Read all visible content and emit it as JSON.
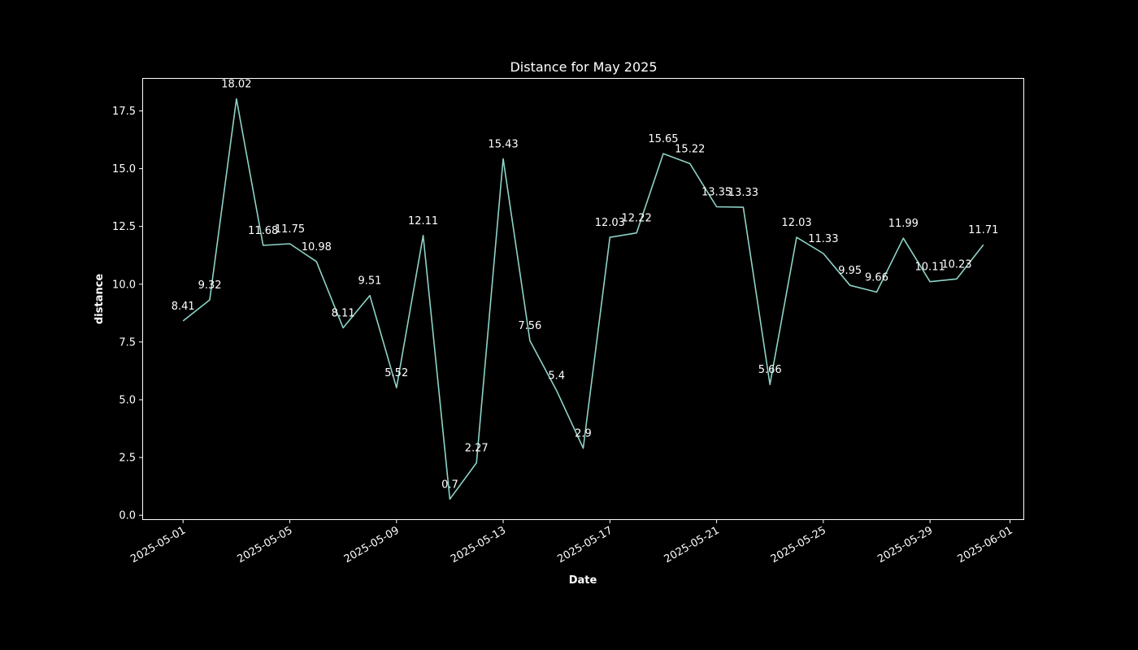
{
  "chart_data": {
    "type": "line",
    "title": "Distance for May 2025",
    "xlabel": "Date",
    "ylabel": "distance",
    "x": [
      "2025-05-01",
      "2025-05-02",
      "2025-05-03",
      "2025-05-04",
      "2025-05-05",
      "2025-05-06",
      "2025-05-07",
      "2025-05-08",
      "2025-05-09",
      "2025-05-10",
      "2025-05-11",
      "2025-05-12",
      "2025-05-13",
      "2025-05-14",
      "2025-05-15",
      "2025-05-16",
      "2025-05-17",
      "2025-05-18",
      "2025-05-19",
      "2025-05-20",
      "2025-05-21",
      "2025-05-22",
      "2025-05-23",
      "2025-05-24",
      "2025-05-25",
      "2025-05-26",
      "2025-05-27",
      "2025-05-28",
      "2025-05-29",
      "2025-05-30",
      "2025-05-31"
    ],
    "values": [
      8.41,
      9.32,
      18.02,
      11.68,
      11.75,
      10.98,
      8.11,
      9.51,
      5.52,
      12.11,
      0.7,
      2.27,
      15.43,
      7.56,
      5.4,
      2.9,
      12.03,
      12.22,
      15.65,
      15.22,
      13.35,
      13.33,
      5.66,
      12.03,
      11.33,
      9.95,
      9.66,
      11.99,
      10.11,
      10.23,
      11.71
    ],
    "data_labels": [
      "8.41",
      "9.32",
      "18.02",
      "11.68",
      "11.75",
      "10.98",
      "8.11",
      "9.51",
      "5.52",
      "12.11",
      "0.7",
      "2.27",
      "15.43",
      "7.56",
      "5.4",
      "2.9",
      "12.03",
      "12.22",
      "15.65",
      "15.22",
      "13.35",
      "13.33",
      "5.66",
      "12.03",
      "11.33",
      "9.95",
      "9.66",
      "11.99",
      "10.11",
      "10.23",
      "11.71"
    ],
    "x_ticks": [
      "2025-05-01",
      "2025-05-05",
      "2025-05-09",
      "2025-05-13",
      "2025-05-17",
      "2025-05-21",
      "2025-05-25",
      "2025-05-29",
      "2025-06-01"
    ],
    "y_ticks": [
      "0.0",
      "2.5",
      "5.0",
      "7.5",
      "10.0",
      "12.5",
      "15.0",
      "17.5"
    ],
    "xlim": [
      "2025-04-29.5",
      "2025-06-01.5"
    ],
    "ylim": [
      -0.17,
      18.89
    ],
    "grid": false,
    "line_color": "#8dd3c7",
    "background": "#000000",
    "axes_color": "#ffffff"
  }
}
